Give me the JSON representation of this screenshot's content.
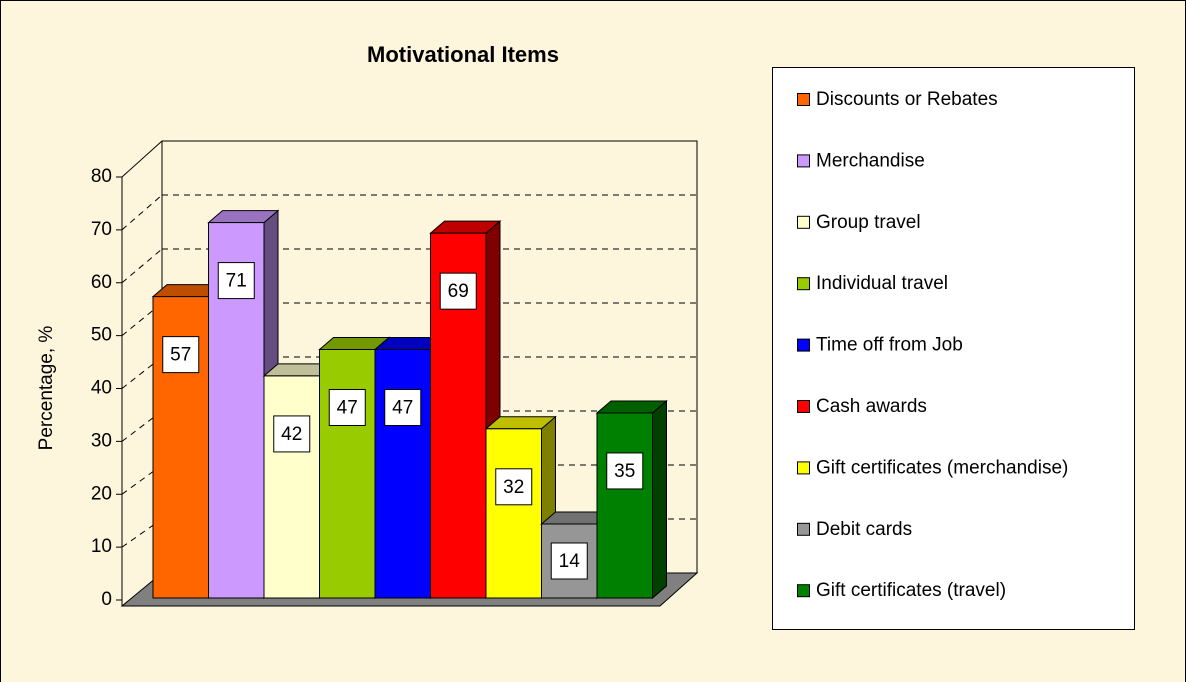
{
  "chart_data": {
    "type": "bar3d",
    "title": "Motivational Items",
    "ylabel": "Percentage, %",
    "ylim": [
      0,
      80
    ],
    "yticks": [
      0,
      10,
      20,
      30,
      40,
      50,
      60,
      70,
      80
    ],
    "grid": true,
    "legend": "right",
    "series": [
      {
        "name": "Discounts or Rebates",
        "color": "#FF6600",
        "values": [
          57
        ]
      },
      {
        "name": "Merchandise",
        "color": "#CC99FF",
        "values": [
          71
        ]
      },
      {
        "name": "Group travel",
        "color": "#FFFFCC",
        "values": [
          42
        ]
      },
      {
        "name": "Individual travel",
        "color": "#99CC00",
        "values": [
          47
        ]
      },
      {
        "name": "Time off from Job",
        "color": "#0000FF",
        "values": [
          47
        ]
      },
      {
        "name": "Cash awards",
        "color": "#FF0000",
        "values": [
          69
        ]
      },
      {
        "name": "Gift certificates (merchandise)",
        "color": "#FFFF00",
        "values": [
          32
        ]
      },
      {
        "name": "Debit cards",
        "color": "#969696",
        "values": [
          14
        ]
      },
      {
        "name": "Gift certificates (travel)",
        "color": "#008000",
        "values": [
          35
        ]
      }
    ]
  }
}
